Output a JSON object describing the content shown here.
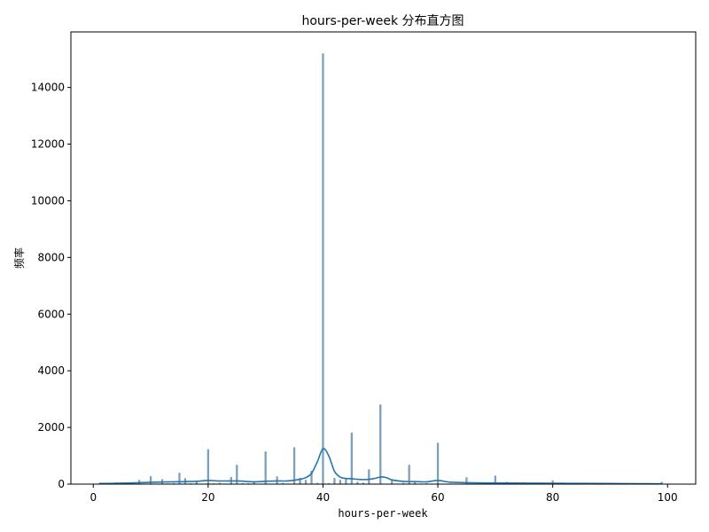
{
  "chart_data": {
    "type": "bar",
    "title": "hours-per-week 分布直方图",
    "xlabel": "hours-per-week",
    "ylabel": "频率",
    "xlim": [
      -3.9,
      104.9
    ],
    "ylim": [
      0,
      15960
    ],
    "xticks": [
      0,
      20,
      40,
      60,
      80,
      100
    ],
    "yticks": [
      0,
      2000,
      4000,
      6000,
      8000,
      10000,
      12000,
      14000
    ],
    "grid": false,
    "legend": "none",
    "bar_color": "#7a9fbf",
    "kde_color": "#1f77b4",
    "bin_width": 0.35,
    "histogram": {
      "x": [
        1,
        2,
        3,
        4,
        5,
        6,
        7,
        8,
        9,
        10,
        11,
        12,
        13,
        14,
        15,
        16,
        17,
        18,
        19,
        20,
        21,
        22,
        23,
        24,
        25,
        26,
        27,
        28,
        29,
        30,
        31,
        32,
        33,
        34,
        35,
        36,
        37,
        38,
        39,
        40,
        41,
        42,
        43,
        44,
        45,
        46,
        47,
        48,
        49,
        50,
        51,
        52,
        53,
        54,
        55,
        56,
        57,
        58,
        59,
        60,
        61,
        62,
        63,
        64,
        65,
        66,
        67,
        68,
        69,
        70,
        71,
        72,
        73,
        74,
        75,
        76,
        77,
        78,
        79,
        80,
        81,
        82,
        83,
        84,
        85,
        86,
        87,
        88,
        89,
        90,
        91,
        92,
        93,
        94,
        95,
        96,
        97,
        98,
        99
      ],
      "y": [
        20,
        30,
        40,
        55,
        60,
        45,
        30,
        145,
        20,
        280,
        15,
        175,
        20,
        35,
        400,
        210,
        30,
        75,
        15,
        1230,
        25,
        45,
        20,
        250,
        680,
        30,
        30,
        85,
        10,
        1150,
        15,
        270,
        40,
        20,
        1300,
        220,
        150,
        470,
        40,
        15200,
        30,
        220,
        150,
        200,
        1820,
        80,
        50,
        520,
        20,
        2810,
        15,
        140,
        20,
        45,
        680,
        90,
        20,
        30,
        10,
        1460,
        5,
        20,
        10,
        15,
        240,
        20,
        10,
        15,
        5,
        300,
        5,
        80,
        5,
        5,
        70,
        5,
        5,
        30,
        5,
        130,
        5,
        5,
        5,
        40,
        5,
        5,
        5,
        5,
        5,
        30,
        5,
        5,
        5,
        5,
        10,
        5,
        5,
        5,
        80
      ]
    },
    "kde": {
      "x": [
        1,
        4,
        8,
        10,
        15,
        18,
        20,
        22,
        25,
        28,
        30,
        32,
        34,
        36,
        37,
        38,
        39,
        40,
        41,
        42,
        43,
        44,
        45,
        46,
        47,
        48,
        49,
        50,
        51,
        52,
        54,
        56,
        58,
        60,
        62,
        65,
        70,
        75,
        80,
        85,
        90,
        95,
        99
      ],
      "y": [
        20,
        30,
        50,
        65,
        85,
        100,
        130,
        110,
        110,
        80,
        100,
        110,
        115,
        170,
        230,
        380,
        780,
        1250,
        1000,
        450,
        250,
        200,
        190,
        170,
        160,
        170,
        200,
        250,
        230,
        150,
        95,
        90,
        80,
        130,
        70,
        50,
        40,
        35,
        30,
        25,
        20,
        15,
        10
      ]
    }
  }
}
